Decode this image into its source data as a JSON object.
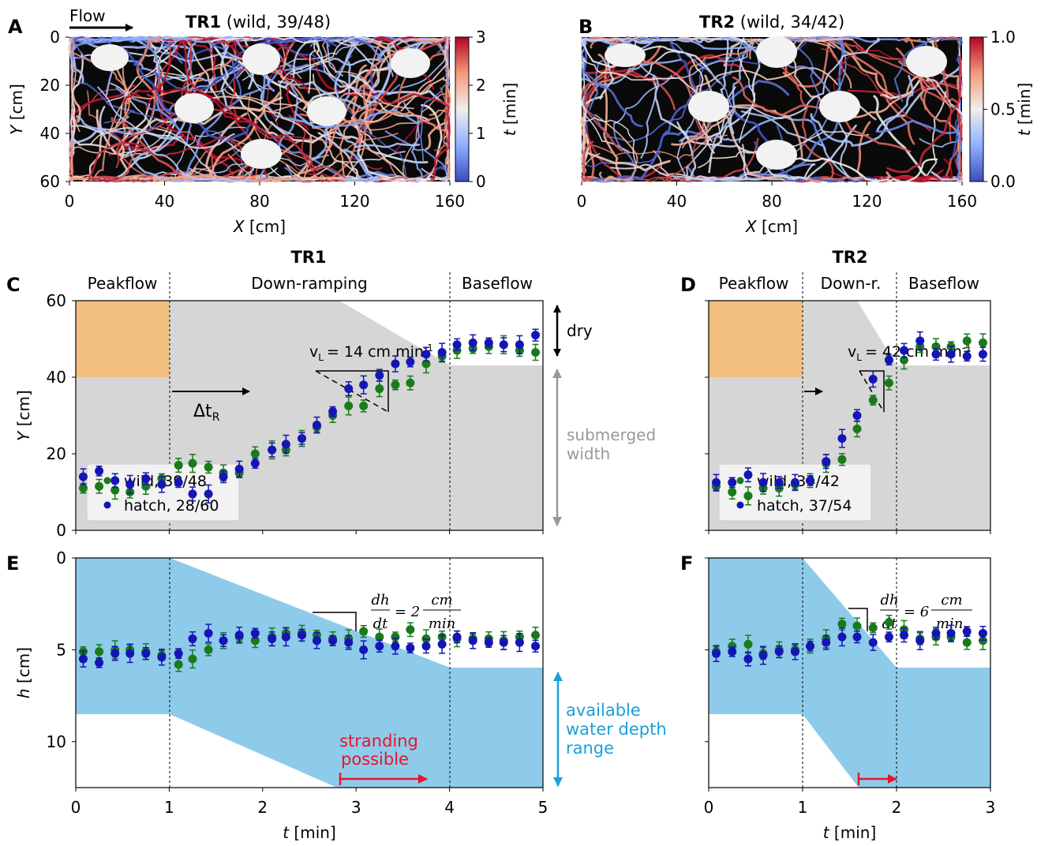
{
  "colors": {
    "wild": "#1a7a1a",
    "hatch": "#1515b5",
    "peak_fill": "#f2c07e",
    "gray_fill": "#d6d6d6",
    "blue_fill": "#8ecbea",
    "cyan_arrow": "#1aa0dc",
    "red": "#e8132a",
    "gray_text": "#999999",
    "track_bg": "#0a0a0a"
  },
  "panel_A": {
    "letter": "A",
    "flow_label": "Flow",
    "title_bold": "TR1",
    "title_rest": "(wild, 39/48)",
    "xlabel": "X [cm]",
    "ylabel": "Y [cm]",
    "xticks": [
      "0",
      "40",
      "80",
      "120",
      "160"
    ],
    "yticks": [
      "0",
      "20",
      "40",
      "60"
    ],
    "cbar_ticks": [
      "3",
      "2",
      "1",
      "0"
    ],
    "cbar_label": "t [min]"
  },
  "panel_B": {
    "letter": "B",
    "title_bold": "TR2",
    "title_rest": "(wild, 34/42)",
    "xlabel": "X [cm]",
    "xticks": [
      "0",
      "40",
      "80",
      "120",
      "160"
    ],
    "cbar_ticks": [
      "1.0",
      "0.5",
      "0.0"
    ],
    "cbar_label": "t [min]"
  },
  "header_C": "TR1",
  "header_D": "TR2",
  "chart_data": [
    {
      "panel": "C",
      "letter": "C",
      "type": "scatter",
      "xlim": [
        0,
        5
      ],
      "ylim": [
        60,
        0
      ],
      "ylabel": "Y [cm]",
      "yticks": [
        "0",
        "20",
        "40",
        "60"
      ],
      "phases": [
        "Peakflow",
        "Down-ramping",
        "Baseflow"
      ],
      "annotations": {
        "rate": "v",
        "rate_sub": "L",
        "rate_val": "= 14 cm min",
        "rate_sup": "-1",
        "lag": "Δt",
        "lag_sub": "R",
        "dry": "dry",
        "submerged": "submerged",
        "width": "width"
      },
      "legend": [
        "wild, 39/48",
        "hatch, 28/60"
      ],
      "series": [
        {
          "name": "wild, 39/48",
          "x": [
            0.08,
            0.25,
            0.42,
            0.58,
            0.75,
            0.92,
            1.1,
            1.25,
            1.42,
            1.58,
            1.75,
            1.92,
            2.1,
            2.25,
            2.42,
            2.58,
            2.75,
            2.92,
            3.08,
            3.25,
            3.42,
            3.58,
            3.75,
            3.92,
            4.08,
            4.25,
            4.42,
            4.58,
            4.75,
            4.92
          ],
          "y": [
            11,
            11.5,
            10.5,
            10,
            11.5,
            13.5,
            17,
            17.5,
            16.5,
            15,
            15,
            20,
            21,
            21,
            24,
            27,
            30,
            32.5,
            32.5,
            37,
            38,
            38.5,
            43.5,
            45.5,
            47,
            47.5,
            48,
            48.5,
            47,
            46.5
          ]
        },
        {
          "name": "hatch, 28/60",
          "x": [
            0.08,
            0.25,
            0.42,
            0.58,
            0.75,
            0.92,
            1.1,
            1.25,
            1.42,
            1.58,
            1.75,
            1.92,
            2.1,
            2.25,
            2.42,
            2.58,
            2.75,
            2.92,
            3.08,
            3.25,
            3.42,
            3.58,
            3.75,
            3.92,
            4.08,
            4.25,
            4.42,
            4.58,
            4.75,
            4.92
          ],
          "y": [
            14,
            15.5,
            13,
            12,
            13.5,
            12,
            12.5,
            9.5,
            9.5,
            14,
            16,
            17.5,
            21,
            22.5,
            24,
            27.5,
            31,
            37,
            38,
            40.5,
            43.5,
            44,
            46,
            46.5,
            48.5,
            49,
            49,
            48.5,
            48.5,
            51
          ]
        }
      ]
    },
    {
      "panel": "D",
      "letter": "D",
      "type": "scatter",
      "xlim": [
        0,
        3
      ],
      "ylim": [
        60,
        0
      ],
      "phases": [
        "Peakflow",
        "Down-r.",
        "Baseflow"
      ],
      "annotations": {
        "rate": "v",
        "rate_sub": "L",
        "rate_val": "= 42 cm min",
        "rate_sup": "-1"
      },
      "legend": [
        "wild, 34/42",
        "hatch, 37/54"
      ],
      "series": [
        {
          "name": "wild, 34/42",
          "x": [
            0.08,
            0.25,
            0.42,
            0.58,
            0.75,
            0.92,
            1.08,
            1.25,
            1.42,
            1.58,
            1.75,
            1.92,
            2.08,
            2.25,
            2.42,
            2.58,
            2.75,
            2.92
          ],
          "y": [
            11.5,
            10,
            9,
            11,
            11,
            12,
            13,
            17.5,
            18.5,
            26.5,
            34,
            38.5,
            44.5,
            48,
            48,
            48,
            49.5,
            49
          ]
        },
        {
          "name": "hatch, 37/54",
          "x": [
            0.08,
            0.25,
            0.42,
            0.58,
            0.75,
            0.92,
            1.08,
            1.25,
            1.42,
            1.58,
            1.75,
            1.92,
            2.08,
            2.25,
            2.42,
            2.58,
            2.75,
            2.92
          ],
          "y": [
            12.5,
            12.5,
            14.5,
            12.5,
            12.5,
            12.5,
            13,
            18,
            24,
            30,
            39.5,
            44.5,
            47,
            49.5,
            46,
            46,
            45.5,
            46
          ]
        }
      ]
    },
    {
      "panel": "E",
      "letter": "E",
      "type": "scatter",
      "xlim": [
        0,
        5
      ],
      "ylim": [
        0,
        12.5
      ],
      "ylabel": "h [cm]",
      "xlabel": "t [min]",
      "xticks": [
        "0",
        "1",
        "2",
        "3",
        "4",
        "5"
      ],
      "yticks": [
        "0",
        "5",
        "10"
      ],
      "annotations": {
        "rate_num": "dh",
        "rate_den": "dt",
        "rate_eq": "= 2",
        "rate_unit_num": "cm",
        "rate_unit_den": "min",
        "stranding1": "stranding",
        "stranding2": "possible",
        "range1": "available",
        "range2": "water depth",
        "range3": "range"
      },
      "series": [
        {
          "name": "wild",
          "x": [
            0.08,
            0.25,
            0.42,
            0.58,
            0.75,
            0.92,
            1.1,
            1.25,
            1.42,
            1.58,
            1.75,
            1.92,
            2.1,
            2.25,
            2.42,
            2.58,
            2.75,
            2.92,
            3.08,
            3.25,
            3.42,
            3.58,
            3.75,
            3.92,
            4.08,
            4.25,
            4.42,
            4.58,
            4.75,
            4.92
          ],
          "y": [
            5.1,
            5.1,
            5.0,
            5.0,
            5.1,
            5.3,
            5.8,
            5.5,
            5.0,
            4.5,
            4.3,
            4.5,
            4.3,
            4.1,
            4.1,
            4.2,
            4.4,
            4.4,
            4.0,
            4.3,
            4.3,
            3.9,
            4.4,
            4.3,
            4.4,
            4.4,
            4.4,
            4.5,
            4.3,
            4.2
          ]
        },
        {
          "name": "hatch",
          "x": [
            0.08,
            0.25,
            0.42,
            0.58,
            0.75,
            0.92,
            1.1,
            1.25,
            1.42,
            1.58,
            1.75,
            1.92,
            2.1,
            2.25,
            2.42,
            2.58,
            2.75,
            2.92,
            3.08,
            3.25,
            3.42,
            3.58,
            3.75,
            3.92,
            4.08,
            4.25,
            4.42,
            4.58,
            4.75,
            4.92
          ],
          "y": [
            5.5,
            5.7,
            5.2,
            5.2,
            5.2,
            5.4,
            5.2,
            4.4,
            4.1,
            4.5,
            4.2,
            4.1,
            4.4,
            4.3,
            4.2,
            4.5,
            4.5,
            4.6,
            5.0,
            4.8,
            4.8,
            4.9,
            4.8,
            4.7,
            4.3,
            4.5,
            4.6,
            4.6,
            4.6,
            4.8
          ]
        }
      ]
    },
    {
      "panel": "F",
      "letter": "F",
      "type": "scatter",
      "xlim": [
        0,
        3
      ],
      "ylim": [
        0,
        12.5
      ],
      "xlabel": "t [min]",
      "xticks": [
        "0",
        "1",
        "2",
        "3"
      ],
      "annotations": {
        "rate_num": "dh",
        "rate_den": "dt",
        "rate_eq": "= 6",
        "rate_unit_num": "cm",
        "rate_unit_den": "min."
      },
      "series": [
        {
          "name": "wild",
          "x": [
            0.08,
            0.25,
            0.42,
            0.58,
            0.75,
            0.92,
            1.08,
            1.25,
            1.42,
            1.58,
            1.75,
            1.92,
            2.08,
            2.25,
            2.42,
            2.58,
            2.75,
            2.92
          ],
          "y": [
            5.1,
            4.8,
            4.7,
            5.2,
            5.0,
            5.0,
            4.8,
            4.4,
            3.6,
            3.7,
            3.8,
            3.5,
            3.9,
            4.4,
            4.3,
            4.3,
            4.6,
            4.5
          ]
        },
        {
          "name": "hatch",
          "x": [
            0.08,
            0.25,
            0.42,
            0.58,
            0.75,
            0.92,
            1.08,
            1.25,
            1.42,
            1.58,
            1.75,
            1.92,
            2.08,
            2.25,
            2.42,
            2.58,
            2.75,
            2.92
          ],
          "y": [
            5.2,
            5.1,
            5.5,
            5.3,
            5.1,
            5.1,
            4.8,
            4.6,
            4.3,
            4.3,
            4.6,
            4.3,
            4.2,
            4.5,
            4.1,
            4.1,
            4.0,
            4.1
          ]
        }
      ]
    }
  ]
}
